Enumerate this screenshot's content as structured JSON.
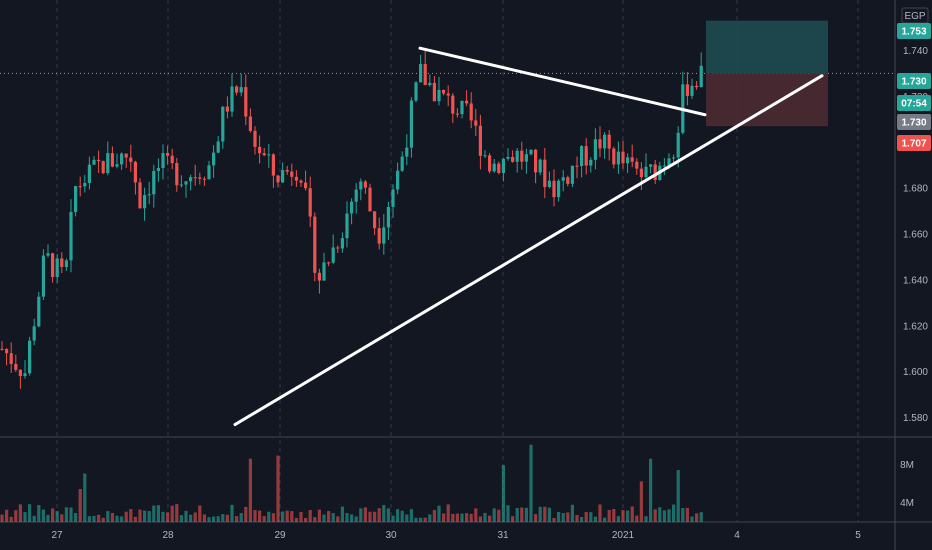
{
  "chart_data": {
    "type": "candlestick",
    "currency": "EGP",
    "x_tick_labels": [
      "27",
      "28",
      "29",
      "30",
      "31",
      "2021",
      "4",
      "5"
    ],
    "y_tick_labels": [
      "1.740",
      "1.720",
      "1.700",
      "1.680",
      "1.660",
      "1.640",
      "1.620",
      "1.600",
      "1.580"
    ],
    "y_range": [
      1.572,
      1.762
    ],
    "volume_tick_labels": [
      "8M",
      "4M"
    ],
    "price_badges": {
      "target": "1.753",
      "last": "1.730",
      "countdown": "07:54",
      "entry": "1.730",
      "stop": "1.707"
    },
    "colors": {
      "up": "#26a69a",
      "down": "#ef5350",
      "background": "#131722",
      "grid": "#363a45",
      "trendline": "#ffffff",
      "target_zone": "#1e4f52",
      "stop_zone": "#4d2a32"
    },
    "trendlines": [
      {
        "name": "upper-resistance",
        "from_price": 1.741,
        "to_price": 1.712
      },
      {
        "name": "lower-support",
        "from_price": 1.577,
        "to_price": 1.729
      }
    ],
    "position": {
      "entry": 1.73,
      "target": 1.753,
      "stop": 1.707
    }
  }
}
